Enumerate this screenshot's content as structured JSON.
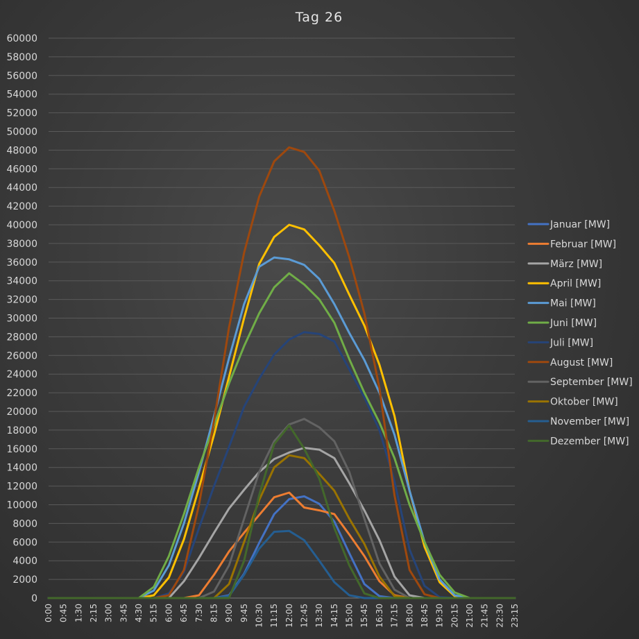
{
  "chart_data": {
    "type": "line",
    "title": "Tag 26",
    "xlabel": "",
    "ylabel": "",
    "ylim": [
      0,
      60000
    ],
    "ytick_step": 2000,
    "x": [
      "0:00",
      "0:45",
      "1:30",
      "2:15",
      "3:00",
      "3:45",
      "4:30",
      "5:15",
      "6:00",
      "6:45",
      "7:30",
      "8:15",
      "9:00",
      "9:45",
      "10:30",
      "11:15",
      "12:00",
      "12:45",
      "13:30",
      "14:15",
      "15:00",
      "15:45",
      "16:30",
      "17:15",
      "18:00",
      "18:45",
      "19:30",
      "20:15",
      "21:00",
      "21:45",
      "22:30",
      "23:15"
    ],
    "grid": true,
    "legend_position": "right",
    "series": [
      {
        "name": "Januar [MW]",
        "color": "#4472C4",
        "values": [
          0,
          0,
          0,
          0,
          0,
          0,
          0,
          0,
          0,
          0,
          0,
          0,
          300,
          2600,
          5900,
          9000,
          10600,
          10900,
          10100,
          8200,
          4800,
          1500,
          200,
          0,
          0,
          0,
          0,
          0,
          0,
          0,
          0,
          0
        ]
      },
      {
        "name": "Februar [MW]",
        "color": "#ED7D31",
        "values": [
          0,
          0,
          0,
          0,
          0,
          0,
          0,
          0,
          0,
          0,
          300,
          2500,
          5000,
          7000,
          8900,
          10800,
          11300,
          9700,
          9400,
          9000,
          6800,
          4500,
          1800,
          300,
          0,
          0,
          0,
          0,
          0,
          0,
          0,
          0
        ]
      },
      {
        "name": "März [MW]",
        "color": "#A5A5A5",
        "values": [
          0,
          0,
          0,
          0,
          0,
          0,
          0,
          0,
          0,
          1800,
          4300,
          7000,
          9600,
          11600,
          13500,
          14900,
          15600,
          16100,
          15900,
          15000,
          12300,
          9400,
          6200,
          2300,
          300,
          0,
          0,
          0,
          0,
          0,
          0,
          0
        ]
      },
      {
        "name": "April [MW]",
        "color": "#FFC000",
        "values": [
          0,
          0,
          0,
          0,
          0,
          0,
          0,
          300,
          2200,
          6300,
          11800,
          17500,
          23700,
          30000,
          35800,
          38700,
          40000,
          39500,
          37800,
          35900,
          32500,
          29200,
          25000,
          19500,
          11500,
          5500,
          1700,
          200,
          0,
          0,
          0,
          0
        ]
      },
      {
        "name": "Mai [MW]",
        "color": "#5B9BD5",
        "values": [
          0,
          0,
          0,
          0,
          0,
          0,
          0,
          800,
          3500,
          8000,
          13500,
          19500,
          25700,
          31500,
          35500,
          36500,
          36300,
          35700,
          34200,
          31500,
          28400,
          25500,
          22000,
          17500,
          11500,
          6000,
          2000,
          300,
          0,
          0,
          0,
          0
        ]
      },
      {
        "name": "Juni [MW]",
        "color": "#70AD47",
        "values": [
          0,
          0,
          0,
          0,
          0,
          0,
          0,
          1200,
          4500,
          9000,
          14000,
          18500,
          23000,
          27000,
          30500,
          33300,
          34800,
          33600,
          32000,
          29500,
          25600,
          22000,
          18800,
          15000,
          10000,
          6000,
          2500,
          600,
          0,
          0,
          0,
          0
        ]
      },
      {
        "name": "Juli [MW]",
        "color": "#264478",
        "values": [
          0,
          0,
          0,
          0,
          0,
          0,
          0,
          0,
          500,
          2800,
          7500,
          12000,
          16200,
          20500,
          23500,
          26100,
          27700,
          28500,
          28300,
          27500,
          24500,
          21500,
          18000,
          12500,
          5200,
          1300,
          100,
          0,
          0,
          0,
          0,
          0
        ]
      },
      {
        "name": "August [MW]",
        "color": "#9E480E",
        "values": [
          0,
          0,
          0,
          0,
          0,
          0,
          0,
          0,
          300,
          3000,
          10000,
          19000,
          29000,
          37000,
          43000,
          46800,
          48300,
          47800,
          45800,
          41500,
          36500,
          30500,
          22500,
          11000,
          3000,
          400,
          0,
          0,
          0,
          0,
          0,
          0
        ]
      },
      {
        "name": "September [MW]",
        "color": "#636363",
        "values": [
          0,
          0,
          0,
          0,
          0,
          0,
          0,
          0,
          0,
          0,
          0,
          700,
          3500,
          8500,
          13500,
          16800,
          18600,
          19200,
          18300,
          16800,
          13500,
          8500,
          3700,
          900,
          0,
          0,
          0,
          0,
          0,
          0,
          0,
          0
        ]
      },
      {
        "name": "Oktober [MW]",
        "color": "#997300",
        "values": [
          0,
          0,
          0,
          0,
          0,
          0,
          0,
          0,
          0,
          0,
          0,
          0,
          1500,
          6000,
          10500,
          14000,
          15300,
          15000,
          13300,
          11500,
          8500,
          5800,
          2300,
          200,
          0,
          0,
          0,
          0,
          0,
          0,
          0,
          0
        ]
      },
      {
        "name": "November [MW]",
        "color": "#255E91",
        "values": [
          0,
          0,
          0,
          0,
          0,
          0,
          0,
          0,
          0,
          0,
          0,
          0,
          200,
          2500,
          5300,
          7100,
          7200,
          6200,
          4000,
          1700,
          300,
          0,
          0,
          0,
          0,
          0,
          0,
          0,
          0,
          0,
          0,
          0
        ]
      },
      {
        "name": "Dezember [MW]",
        "color": "#43682B",
        "values": [
          0,
          0,
          0,
          0,
          0,
          0,
          0,
          0,
          0,
          0,
          0,
          0,
          0,
          4000,
          11000,
          16500,
          18500,
          16000,
          12800,
          7500,
          3500,
          500,
          0,
          0,
          0,
          0,
          0,
          0,
          0,
          0,
          0,
          0
        ]
      }
    ]
  }
}
